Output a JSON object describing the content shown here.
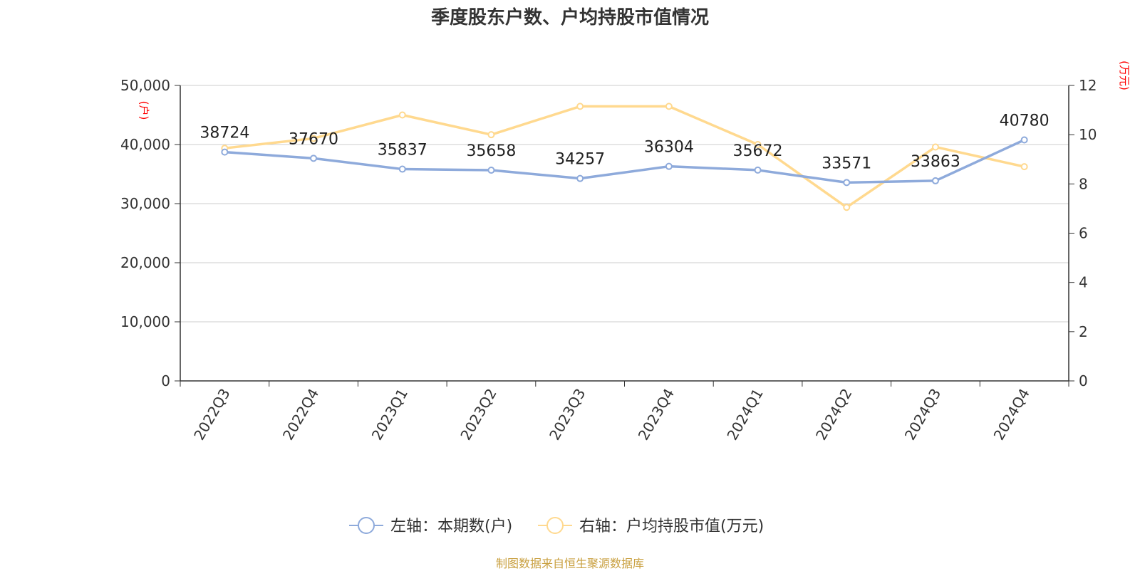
{
  "chart_data": {
    "type": "line",
    "title": "季度股东户数、户均持股市值情况",
    "categories": [
      "2022Q3",
      "2022Q4",
      "2023Q1",
      "2023Q2",
      "2023Q3",
      "2023Q4",
      "2024Q1",
      "2024Q2",
      "2024Q3",
      "2024Q4"
    ],
    "series": [
      {
        "name": "左轴：本期数(户)",
        "axis": "left",
        "values": [
          38724,
          37670,
          35837,
          35658,
          34257,
          36304,
          35672,
          33571,
          33863,
          40780
        ],
        "data_labels": [
          "38724",
          "37670",
          "35837",
          "35658",
          "34257",
          "36304",
          "35672",
          "33571",
          "33863",
          "40780"
        ],
        "color": "#8eaadb"
      },
      {
        "name": "右轴：户均持股市值(万元)",
        "axis": "right",
        "values": [
          9.45,
          9.85,
          10.8,
          10.0,
          11.15,
          11.15,
          9.6,
          7.05,
          9.5,
          8.7
        ],
        "color": "#ffd98f"
      }
    ],
    "left_axis": {
      "unit": "(户)",
      "min": 0,
      "max": 50000,
      "ticks": [
        0,
        10000,
        20000,
        30000,
        40000,
        50000
      ],
      "tick_labels": [
        "0",
        "10,000",
        "20,000",
        "30,000",
        "40,000",
        "50,000"
      ]
    },
    "right_axis": {
      "unit": "(万元)",
      "min": 0,
      "max": 12,
      "ticks": [
        0,
        2,
        4,
        6,
        8,
        10,
        12
      ],
      "tick_labels": [
        "0",
        "2",
        "4",
        "6",
        "8",
        "10",
        "12"
      ]
    },
    "grid": true,
    "legend_position": "bottom-center",
    "source": "制图数据来自恒生聚源数据库",
    "colors": {
      "unit_label": "#ff0000",
      "grid": "#cccccc",
      "axis": "#333333",
      "source": "#c9a040"
    }
  }
}
